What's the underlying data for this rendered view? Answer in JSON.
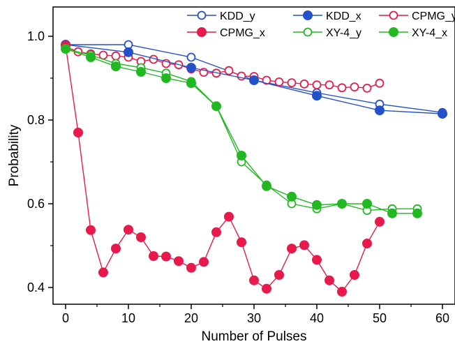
{
  "chart_data": {
    "type": "line",
    "xlabel": "Number of Pulses",
    "ylabel": "Probability",
    "xlim": [
      -2,
      62
    ],
    "ylim": [
      0.36,
      1.07
    ],
    "xticks": [
      0,
      10,
      20,
      30,
      40,
      50,
      60
    ],
    "xtick_labels": [
      "0",
      "10",
      "20",
      "30",
      "40",
      "50",
      "60"
    ],
    "yticks": [
      0.4,
      0.6,
      0.8,
      1.0
    ],
    "ytick_labels": [
      "0.4",
      "0.6",
      "0.8",
      "1.0"
    ],
    "grid": false,
    "legend_position": "top-right",
    "series": [
      {
        "name": "KDD_y",
        "color": "#2450c8",
        "marker": "open",
        "x": [
          0,
          10,
          20,
          30,
          40,
          50,
          60
        ],
        "y": [
          0.98,
          0.98,
          0.95,
          0.895,
          0.865,
          0.838,
          0.818
        ]
      },
      {
        "name": "KDD_x",
        "color": "#2450c8",
        "marker": "filled",
        "x": [
          0,
          10,
          20,
          30,
          40,
          50,
          60
        ],
        "y": [
          0.98,
          0.962,
          0.925,
          0.895,
          0.858,
          0.823,
          0.815
        ]
      },
      {
        "name": "CPMG_y",
        "color": "#e8194b",
        "marker": "open",
        "x": [
          0,
          2,
          4,
          6,
          8,
          10,
          12,
          14,
          16,
          18,
          20,
          22,
          24,
          26,
          28,
          30,
          32,
          34,
          36,
          38,
          40,
          42,
          44,
          46,
          48,
          50
        ],
        "y": [
          0.975,
          0.963,
          0.958,
          0.955,
          0.953,
          0.95,
          0.94,
          0.945,
          0.935,
          0.932,
          0.922,
          0.914,
          0.912,
          0.918,
          0.905,
          0.904,
          0.895,
          0.891,
          0.889,
          0.886,
          0.884,
          0.884,
          0.877,
          0.879,
          0.876,
          0.888
        ]
      },
      {
        "name": "CPMG_x",
        "color": "#e8194b",
        "marker": "filled",
        "x": [
          0,
          2,
          4,
          6,
          8,
          10,
          12,
          14,
          16,
          18,
          20,
          22,
          24,
          26,
          28,
          30,
          32,
          34,
          36,
          38,
          40,
          42,
          44,
          46,
          48,
          50
        ],
        "y": [
          0.978,
          0.77,
          0.537,
          0.436,
          0.493,
          0.538,
          0.52,
          0.475,
          0.474,
          0.463,
          0.447,
          0.461,
          0.532,
          0.569,
          0.508,
          0.417,
          0.397,
          0.43,
          0.493,
          0.501,
          0.466,
          0.417,
          0.39,
          0.43,
          0.505,
          0.557
        ]
      },
      {
        "name": "XY-4_y",
        "color": "#22b822",
        "marker": "open",
        "x": [
          0,
          4,
          8,
          12,
          16,
          20,
          24,
          28,
          32,
          36,
          40,
          44,
          48,
          52,
          56
        ],
        "y": [
          0.97,
          0.955,
          0.935,
          0.925,
          0.912,
          0.892,
          0.833,
          0.7,
          0.645,
          0.6,
          0.588,
          0.6,
          0.584,
          0.588,
          0.588
        ]
      },
      {
        "name": "XY-4_x",
        "color": "#22b822",
        "marker": "filled",
        "x": [
          0,
          4,
          8,
          12,
          16,
          20,
          24,
          28,
          32,
          36,
          40,
          44,
          48,
          52,
          56
        ],
        "y": [
          0.97,
          0.95,
          0.928,
          0.915,
          0.9,
          0.888,
          0.833,
          0.715,
          0.642,
          0.617,
          0.597,
          0.6,
          0.6,
          0.577,
          0.577
        ]
      }
    ]
  }
}
